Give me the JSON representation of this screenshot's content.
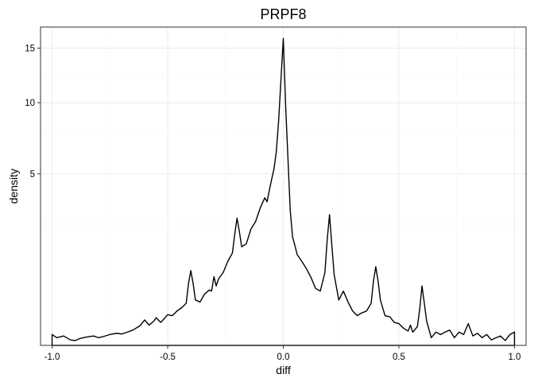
{
  "chart_data": {
    "type": "line",
    "title": "PRPF8",
    "xlabel": "diff",
    "ylabel": "density",
    "xlim": [
      -1.05,
      1.05
    ],
    "x_ticks": [
      {
        "value": -1.0,
        "label": "-1.0"
      },
      {
        "value": -0.5,
        "label": "-0.5"
      },
      {
        "value": 0.0,
        "label": "0.0"
      },
      {
        "value": 0.5,
        "label": "0.5"
      },
      {
        "value": 1.0,
        "label": "1.0"
      }
    ],
    "y_scale": "sqrt",
    "ylim": [
      0,
      17.2
    ],
    "y_ticks": [
      {
        "value": 5,
        "label": "5"
      },
      {
        "value": 10,
        "label": "10"
      },
      {
        "value": 15,
        "label": "15"
      }
    ],
    "grid": true,
    "series": [
      {
        "x": [
          -1.0,
          -0.98,
          -0.95,
          -0.92,
          -0.9,
          -0.88,
          -0.85,
          -0.82,
          -0.8,
          -0.78,
          -0.75,
          -0.72,
          -0.7,
          -0.68,
          -0.65,
          -0.62,
          -0.6,
          -0.58,
          -0.56,
          -0.55,
          -0.53,
          -0.52,
          -0.5,
          -0.48,
          -0.46,
          -0.44,
          -0.42,
          -0.41,
          -0.4,
          -0.39,
          -0.38,
          -0.36,
          -0.34,
          -0.32,
          -0.31,
          -0.3,
          -0.29,
          -0.28,
          -0.26,
          -0.24,
          -0.22,
          -0.21,
          -0.2,
          -0.19,
          -0.18,
          -0.16,
          -0.14,
          -0.12,
          -0.1,
          -0.08,
          -0.07,
          -0.06,
          -0.05,
          -0.04,
          -0.03,
          -0.02,
          -0.01,
          0.0,
          0.01,
          0.02,
          0.03,
          0.04,
          0.05,
          0.06,
          0.08,
          0.1,
          0.12,
          0.14,
          0.16,
          0.18,
          0.19,
          0.2,
          0.21,
          0.22,
          0.24,
          0.26,
          0.28,
          0.3,
          0.32,
          0.34,
          0.36,
          0.38,
          0.39,
          0.4,
          0.41,
          0.42,
          0.44,
          0.46,
          0.48,
          0.5,
          0.52,
          0.54,
          0.55,
          0.56,
          0.58,
          0.59,
          0.6,
          0.61,
          0.62,
          0.64,
          0.66,
          0.68,
          0.7,
          0.72,
          0.74,
          0.76,
          0.78,
          0.8,
          0.82,
          0.84,
          0.86,
          0.88,
          0.9,
          0.92,
          0.94,
          0.96,
          0.98,
          1.0
        ],
        "y": [
          0.02,
          0.01,
          0.015,
          0.005,
          0.004,
          0.008,
          0.012,
          0.015,
          0.01,
          0.013,
          0.02,
          0.025,
          0.022,
          0.028,
          0.04,
          0.065,
          0.11,
          0.07,
          0.1,
          0.13,
          0.09,
          0.11,
          0.16,
          0.15,
          0.2,
          0.24,
          0.3,
          0.65,
          0.95,
          0.65,
          0.35,
          0.32,
          0.45,
          0.52,
          0.5,
          0.8,
          0.6,
          0.75,
          0.9,
          1.2,
          1.45,
          2.1,
          2.75,
          2.2,
          1.65,
          1.75,
          2.3,
          2.6,
          3.2,
          3.7,
          3.5,
          4.1,
          4.7,
          5.3,
          6.4,
          8.6,
          12.0,
          16.0,
          9.8,
          6.0,
          3.1,
          2.0,
          1.7,
          1.4,
          1.2,
          1.0,
          0.78,
          0.55,
          0.5,
          0.9,
          1.9,
          2.9,
          1.7,
          0.85,
          0.35,
          0.5,
          0.32,
          0.2,
          0.15,
          0.18,
          0.2,
          0.3,
          0.7,
          1.05,
          0.7,
          0.35,
          0.15,
          0.14,
          0.09,
          0.08,
          0.05,
          0.035,
          0.07,
          0.03,
          0.06,
          0.22,
          0.6,
          0.3,
          0.1,
          0.01,
          0.03,
          0.02,
          0.03,
          0.04,
          0.01,
          0.03,
          0.02,
          0.08,
          0.015,
          0.025,
          0.01,
          0.02,
          0.005,
          0.01,
          0.015,
          0.004,
          0.02,
          0.03
        ]
      }
    ]
  }
}
